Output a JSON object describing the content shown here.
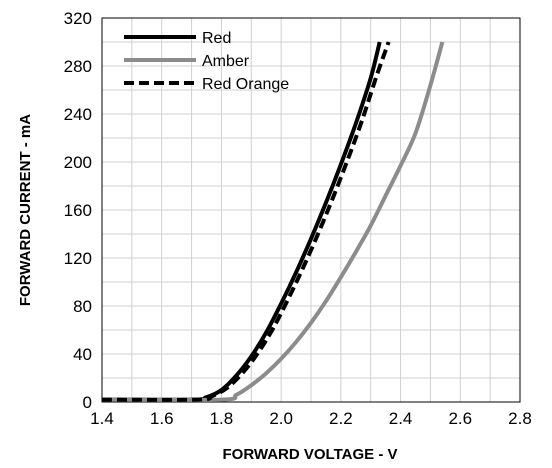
{
  "chart_data": {
    "type": "line",
    "xlabel": "FORWARD VOLTAGE - V",
    "ylabel": "FORWARD CURRENT - mA",
    "xlim": [
      1.4,
      2.8
    ],
    "ylim": [
      0,
      320
    ],
    "x_ticks": [
      "1.4",
      "1.6",
      "1.8",
      "2.0",
      "2.2",
      "2.4",
      "2.6",
      "2.8"
    ],
    "y_ticks": [
      "0",
      "40",
      "80",
      "120",
      "160",
      "200",
      "240",
      "280",
      "320"
    ],
    "x_tick_values": [
      1.4,
      1.6,
      1.8,
      2.0,
      2.2,
      2.4,
      2.6,
      2.8
    ],
    "y_tick_values": [
      0,
      40,
      80,
      120,
      160,
      200,
      240,
      280,
      320
    ],
    "x_minor_step": 0.1,
    "y_minor_step": 20,
    "grid": true,
    "legend_position": "top-left",
    "series": [
      {
        "name": "Red",
        "color": "#000000",
        "dash": "solid",
        "points": [
          [
            1.4,
            2
          ],
          [
            1.7,
            2
          ],
          [
            1.75,
            4
          ],
          [
            1.8,
            10
          ],
          [
            1.85,
            22
          ],
          [
            1.9,
            38
          ],
          [
            1.95,
            58
          ],
          [
            2.0,
            82
          ],
          [
            2.05,
            108
          ],
          [
            2.1,
            136
          ],
          [
            2.15,
            166
          ],
          [
            2.2,
            198
          ],
          [
            2.25,
            232
          ],
          [
            2.3,
            270
          ],
          [
            2.33,
            300
          ]
        ]
      },
      {
        "name": "Amber",
        "color": "#8c8c8c",
        "dash": "solid",
        "points": [
          [
            1.4,
            2
          ],
          [
            1.8,
            2
          ],
          [
            1.85,
            6
          ],
          [
            1.9,
            14
          ],
          [
            1.95,
            24
          ],
          [
            2.0,
            36
          ],
          [
            2.05,
            50
          ],
          [
            2.1,
            66
          ],
          [
            2.15,
            84
          ],
          [
            2.2,
            104
          ],
          [
            2.25,
            125
          ],
          [
            2.3,
            147
          ],
          [
            2.35,
            172
          ],
          [
            2.4,
            197
          ],
          [
            2.45,
            224
          ],
          [
            2.5,
            264
          ],
          [
            2.54,
            300
          ]
        ]
      },
      {
        "name": "Red Orange",
        "color": "#000000",
        "dash": "dashed",
        "points": [
          [
            1.4,
            2
          ],
          [
            1.72,
            2
          ],
          [
            1.77,
            5
          ],
          [
            1.82,
            12
          ],
          [
            1.87,
            24
          ],
          [
            1.92,
            40
          ],
          [
            1.97,
            60
          ],
          [
            2.02,
            84
          ],
          [
            2.07,
            110
          ],
          [
            2.12,
            138
          ],
          [
            2.17,
            168
          ],
          [
            2.22,
            200
          ],
          [
            2.27,
            234
          ],
          [
            2.32,
            272
          ],
          [
            2.36,
            300
          ]
        ]
      }
    ]
  }
}
